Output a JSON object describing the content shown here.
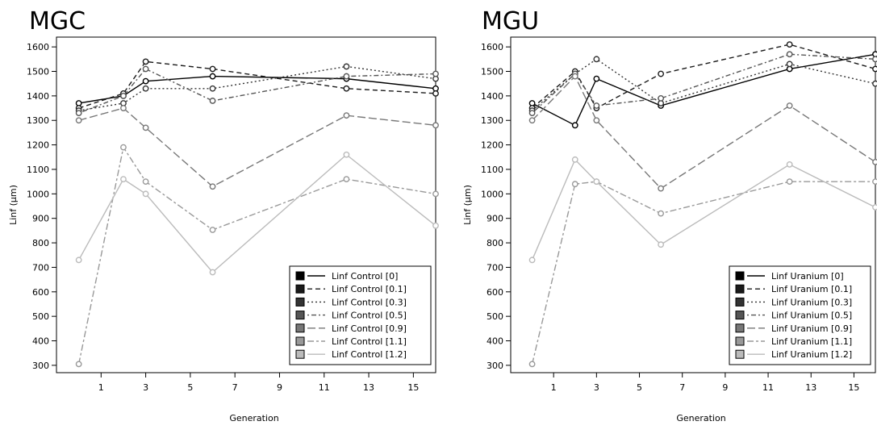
{
  "chart_data": [
    {
      "type": "line",
      "title": "MGC",
      "xlabel": "Generation",
      "ylabel": "Linf (µm)",
      "xlim": [
        -1,
        16
      ],
      "ylim": [
        270,
        1640
      ],
      "xticks": [
        1,
        3,
        5,
        7,
        9,
        11,
        13,
        15
      ],
      "yticks": [
        300,
        400,
        500,
        600,
        700,
        800,
        900,
        1000,
        1100,
        1200,
        1300,
        1400,
        1500,
        1600
      ],
      "x": [
        0,
        2,
        3,
        6,
        12,
        16
      ],
      "legend": "bottom-right",
      "series": [
        {
          "name": "Linf Control [0]",
          "color": "#000000",
          "dash": "solid",
          "values": [
            1370,
            1400,
            1460,
            1480,
            1470,
            1430
          ]
        },
        {
          "name": "Linf Control [0.1]",
          "color": "#1a1a1a",
          "dash": "dashed",
          "values": [
            1350,
            1410,
            1540,
            1510,
            1430,
            1410
          ]
        },
        {
          "name": "Linf Control [0.3]",
          "color": "#333333",
          "dash": "dotted",
          "values": [
            1340,
            1370,
            1430,
            1430,
            1520,
            1470
          ]
        },
        {
          "name": "Linf Control [0.5]",
          "color": "#555555",
          "dash": "dotdash",
          "values": [
            1330,
            1400,
            1510,
            1380,
            1480,
            1490
          ]
        },
        {
          "name": "Linf Control [0.9]",
          "color": "#777777",
          "dash": "longdash",
          "values": [
            1300,
            1350,
            1270,
            1030,
            1320,
            1280
          ]
        },
        {
          "name": "Linf Control [1.1]",
          "color": "#999999",
          "dash": "twodash",
          "values": [
            305,
            1190,
            1050,
            853,
            1060,
            1000
          ]
        },
        {
          "name": "Linf Control [1.2]",
          "color": "#bbbbbb",
          "dash": "solid",
          "values": [
            730,
            1060,
            1000,
            680,
            1160,
            870
          ]
        }
      ]
    },
    {
      "type": "line",
      "title": "MGU",
      "xlabel": "Generation",
      "ylabel": "Linf (µm)",
      "xlim": [
        -1,
        16
      ],
      "ylim": [
        270,
        1640
      ],
      "xticks": [
        1,
        3,
        5,
        7,
        9,
        11,
        13,
        15
      ],
      "yticks": [
        300,
        400,
        500,
        600,
        700,
        800,
        900,
        1000,
        1100,
        1200,
        1300,
        1400,
        1500,
        1600
      ],
      "x": [
        0,
        2,
        3,
        6,
        12,
        16
      ],
      "legend": "bottom-right",
      "series": [
        {
          "name": "Linf Uranium [0]",
          "color": "#000000",
          "dash": "solid",
          "values": [
            1370,
            1280,
            1470,
            1360,
            1510,
            1570
          ]
        },
        {
          "name": "Linf Uranium [0.1]",
          "color": "#1a1a1a",
          "dash": "dashed",
          "values": [
            1350,
            1500,
            1350,
            1490,
            1610,
            1510
          ]
        },
        {
          "name": "Linf Uranium [0.3]",
          "color": "#333333",
          "dash": "dotted",
          "values": [
            1340,
            1490,
            1550,
            1370,
            1530,
            1450
          ]
        },
        {
          "name": "Linf Uranium [0.5]",
          "color": "#555555",
          "dash": "dotdash",
          "values": [
            1330,
            1490,
            1360,
            1390,
            1570,
            1550
          ]
        },
        {
          "name": "Linf Uranium [0.9]",
          "color": "#777777",
          "dash": "longdash",
          "values": [
            1300,
            1480,
            1300,
            1022,
            1360,
            1130
          ]
        },
        {
          "name": "Linf Uranium [1.1]",
          "color": "#999999",
          "dash": "twodash",
          "values": [
            305,
            1040,
            1050,
            920,
            1050,
            1050
          ]
        },
        {
          "name": "Linf Uranium [1.2]",
          "color": "#bbbbbb",
          "dash": "solid",
          "values": [
            730,
            1140,
            1050,
            793,
            1120,
            945
          ]
        }
      ]
    }
  ]
}
